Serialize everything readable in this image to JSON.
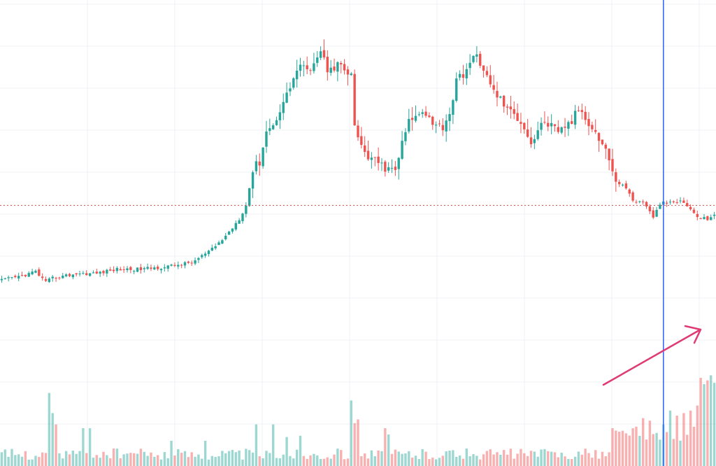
{
  "chart_data": {
    "type": "candlestick",
    "title": "",
    "xlabel": "",
    "ylabel": "",
    "grid": true,
    "ylim": [
      0,
      100
    ],
    "volume_ylim": [
      0,
      100
    ],
    "price_path": [
      [
        0,
        38
      ],
      [
        6,
        39
      ],
      [
        10,
        40
      ],
      [
        13,
        37.5
      ],
      [
        15,
        38.5
      ],
      [
        22,
        39.5
      ],
      [
        28,
        39.6
      ],
      [
        34,
        40.5
      ],
      [
        40,
        40.5
      ],
      [
        48,
        41
      ],
      [
        56,
        42
      ],
      [
        62,
        45
      ],
      [
        66,
        48
      ],
      [
        70,
        52
      ],
      [
        72,
        55
      ],
      [
        74,
        63
      ],
      [
        76,
        65
      ],
      [
        78,
        72
      ],
      [
        80,
        73
      ],
      [
        82,
        77
      ],
      [
        84,
        80
      ],
      [
        86,
        84
      ],
      [
        88,
        87
      ],
      [
        90,
        85
      ],
      [
        92,
        88
      ],
      [
        94,
        90
      ],
      [
        96,
        86
      ],
      [
        97,
        87
      ],
      [
        98,
        86.5
      ],
      [
        100,
        87
      ],
      [
        102,
        84
      ],
      [
        103,
        84
      ],
      [
        104,
        73
      ],
      [
        106,
        68
      ],
      [
        108,
        66
      ],
      [
        110,
        65
      ],
      [
        112,
        64
      ],
      [
        114,
        63
      ],
      [
        116,
        63
      ],
      [
        118,
        69
      ],
      [
        120,
        74
      ],
      [
        122,
        75
      ],
      [
        124,
        77
      ],
      [
        126,
        75
      ],
      [
        128,
        73
      ],
      [
        130,
        73
      ],
      [
        132,
        76
      ],
      [
        134,
        83
      ],
      [
        136,
        85
      ],
      [
        138,
        87
      ],
      [
        140,
        89
      ],
      [
        142,
        86
      ],
      [
        144,
        82
      ],
      [
        146,
        80
      ],
      [
        148,
        78
      ],
      [
        150,
        76
      ],
      [
        152,
        75
      ],
      [
        154,
        73
      ],
      [
        156,
        69
      ],
      [
        158,
        72
      ],
      [
        160,
        74
      ],
      [
        162,
        73
      ],
      [
        164,
        71
      ],
      [
        166,
        73
      ],
      [
        168,
        74
      ],
      [
        170,
        77
      ],
      [
        172,
        75
      ],
      [
        174,
        73
      ],
      [
        176,
        70
      ],
      [
        178,
        68
      ],
      [
        180,
        62
      ],
      [
        182,
        60
      ],
      [
        184,
        59
      ],
      [
        186,
        56
      ],
      [
        188,
        56
      ],
      [
        190,
        55
      ],
      [
        192,
        52
      ],
      [
        194,
        55.5
      ],
      [
        196,
        55.5
      ],
      [
        198,
        55.5
      ],
      [
        200,
        56
      ],
      [
        202,
        55
      ],
      [
        204,
        53
      ],
      [
        206,
        52
      ],
      [
        208,
        52
      ],
      [
        210,
        53
      ]
    ],
    "reference_line": {
      "value": 55,
      "style": "dotted",
      "color": "#d9534f"
    },
    "vertical_marker_index": 195,
    "marker_line_color": "#2962ff",
    "volume_spikes": [
      [
        14,
        58
      ],
      [
        15,
        42
      ],
      [
        16,
        33
      ],
      [
        24,
        30
      ],
      [
        26,
        30
      ],
      [
        50,
        20
      ],
      [
        60,
        20
      ],
      [
        75,
        33
      ],
      [
        80,
        33
      ],
      [
        84,
        23
      ],
      [
        88,
        24
      ],
      [
        103,
        52
      ],
      [
        104,
        34
      ],
      [
        105,
        37
      ],
      [
        113,
        30
      ],
      [
        114,
        25
      ],
      [
        180,
        30
      ],
      [
        183,
        28
      ],
      [
        186,
        30
      ],
      [
        189,
        38
      ],
      [
        191,
        36
      ],
      [
        195,
        33
      ],
      [
        197,
        44
      ],
      [
        199,
        40
      ],
      [
        201,
        42
      ],
      [
        203,
        44
      ],
      [
        205,
        48
      ],
      [
        206,
        70
      ],
      [
        207,
        65
      ],
      [
        208,
        68
      ],
      [
        209,
        72
      ],
      [
        210,
        66
      ]
    ],
    "colors": {
      "up": "#26a69a",
      "down": "#ef5350",
      "grid": "#eef0f4",
      "arrow": "#e03a75"
    }
  }
}
